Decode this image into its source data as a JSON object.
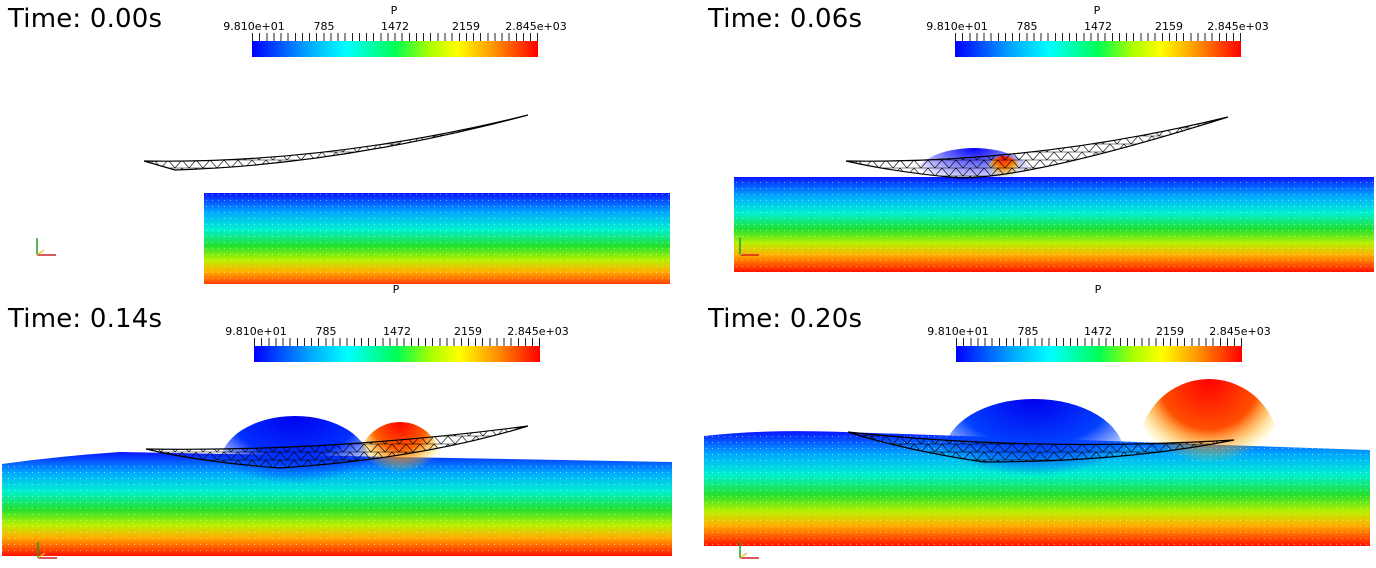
{
  "panels": [
    {
      "time_label": "Time: 0.00s"
    },
    {
      "time_label": "Time: 0.06s"
    },
    {
      "time_label": "Time: 0.14s"
    },
    {
      "time_label": "Time: 0.20s"
    }
  ],
  "colorbar": {
    "title": "P",
    "ticks": [
      "9.810e+01",
      "785",
      "1472",
      "2159",
      "2.845e+03"
    ],
    "colors": [
      "#0000ff",
      "#00ffff",
      "#00ff55",
      "#ffff00",
      "#ff0000"
    ]
  }
}
